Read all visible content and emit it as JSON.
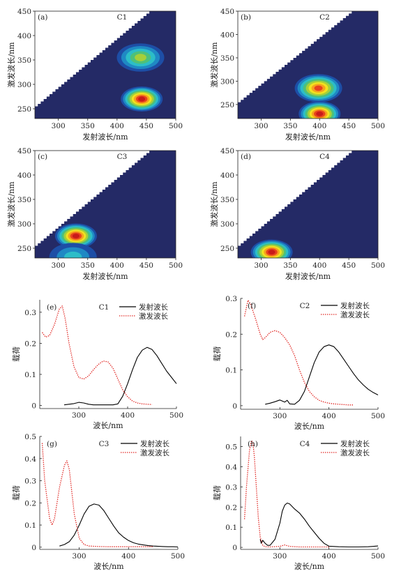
{
  "chart_data": [
    {
      "type": "heatmap",
      "panel": "(a)",
      "title": "C1",
      "xlabel": "发射波长/nm",
      "ylabel": "激发波长/nm",
      "xlim": [
        260,
        500
      ],
      "ylim": [
        230,
        450
      ],
      "xticks": [
        300,
        350,
        400,
        450,
        500
      ],
      "yticks": [
        250,
        300,
        350,
        400,
        450
      ],
      "peaks": [
        {
          "em": 442,
          "ex": 270,
          "intensity": 1.0
        },
        {
          "em": 440,
          "ex": 355,
          "intensity": 0.5
        }
      ]
    },
    {
      "type": "heatmap",
      "panel": "(b)",
      "title": "C2",
      "xlabel": "发射波长/nm",
      "ylabel": "激发波长/nm",
      "xlim": [
        260,
        500
      ],
      "ylim": [
        220,
        450
      ],
      "xticks": [
        300,
        350,
        400,
        450,
        500
      ],
      "yticks": [
        250,
        300,
        350,
        400,
        450
      ],
      "peaks": [
        {
          "em": 400,
          "ex": 230,
          "intensity": 1.0
        },
        {
          "em": 398,
          "ex": 285,
          "intensity": 0.85
        }
      ]
    },
    {
      "type": "heatmap",
      "panel": "(c)",
      "title": "C3",
      "xlabel": "发射波长/nm",
      "ylabel": "激发波长/nm",
      "xlim": [
        260,
        500
      ],
      "ylim": [
        230,
        450
      ],
      "xticks": [
        300,
        350,
        400,
        450,
        500
      ],
      "yticks": [
        250,
        300,
        350,
        400,
        450
      ],
      "peaks": [
        {
          "em": 330,
          "ex": 275,
          "intensity": 1.0
        },
        {
          "em": 325,
          "ex": 232,
          "intensity": 0.35
        }
      ]
    },
    {
      "type": "heatmap",
      "panel": "(d)",
      "title": "C4",
      "xlabel": "发射波长/nm",
      "ylabel": "激发波长/nm",
      "xlim": [
        260,
        500
      ],
      "ylim": [
        230,
        450
      ],
      "xticks": [
        300,
        350,
        400,
        450,
        500
      ],
      "yticks": [
        250,
        300,
        350,
        400,
        450
      ],
      "peaks": [
        {
          "em": 318,
          "ex": 242,
          "intensity": 1.0
        }
      ]
    },
    {
      "type": "line",
      "panel": "(e)",
      "title": "C1",
      "xlabel": "波长/nm",
      "ylabel": "载荷",
      "xlim": [
        220,
        500
      ],
      "ylim": [
        -0.01,
        0.34
      ],
      "xticks": [
        300,
        400,
        500
      ],
      "yticks": [
        0,
        0.1,
        0.2,
        0.3
      ],
      "series": [
        {
          "name": "发射波长",
          "color": "#000000",
          "dash": "solid",
          "x": [
            270,
            280,
            290,
            300,
            310,
            320,
            330,
            340,
            350,
            360,
            370,
            380,
            390,
            400,
            410,
            420,
            430,
            440,
            450,
            460,
            470,
            480,
            490,
            500
          ],
          "y": [
            0.002,
            0.004,
            0.006,
            0.01,
            0.008,
            0.004,
            0.002,
            0.002,
            0.002,
            0.002,
            0.002,
            0.005,
            0.03,
            0.07,
            0.115,
            0.155,
            0.178,
            0.187,
            0.18,
            0.16,
            0.135,
            0.11,
            0.09,
            0.07
          ]
        },
        {
          "name": "激发波长",
          "color": "#e0201c",
          "dash": "dotted",
          "x": [
            225,
            232,
            240,
            250,
            260,
            266,
            272,
            280,
            290,
            300,
            310,
            320,
            330,
            340,
            350,
            360,
            370,
            380,
            390,
            400,
            410,
            420,
            430,
            440,
            450
          ],
          "y": [
            0.235,
            0.22,
            0.225,
            0.26,
            0.31,
            0.32,
            0.28,
            0.2,
            0.125,
            0.09,
            0.085,
            0.095,
            0.115,
            0.132,
            0.143,
            0.14,
            0.12,
            0.085,
            0.05,
            0.028,
            0.014,
            0.008,
            0.005,
            0.004,
            0.003
          ]
        }
      ]
    },
    {
      "type": "line",
      "panel": "(f)",
      "title": "C2",
      "xlabel": "波长/nm",
      "ylabel": "载荷",
      "xlim": [
        220,
        500
      ],
      "ylim": [
        -0.01,
        0.3
      ],
      "xticks": [
        300,
        400,
        500
      ],
      "yticks": [
        0,
        0.1,
        0.2,
        0.3
      ],
      "series": [
        {
          "name": "发射波长",
          "color": "#000000",
          "dash": "solid",
          "x": [
            270,
            280,
            290,
            300,
            310,
            315,
            320,
            330,
            340,
            350,
            360,
            370,
            380,
            390,
            400,
            410,
            420,
            430,
            440,
            450,
            460,
            470,
            480,
            490,
            500
          ],
          "y": [
            0.004,
            0.007,
            0.011,
            0.016,
            0.01,
            0.015,
            0.005,
            0.004,
            0.015,
            0.04,
            0.08,
            0.12,
            0.15,
            0.165,
            0.17,
            0.165,
            0.15,
            0.13,
            0.11,
            0.09,
            0.072,
            0.058,
            0.046,
            0.037,
            0.03
          ]
        },
        {
          "name": "激发波长",
          "color": "#e0201c",
          "dash": "dotted",
          "x": [
            228,
            235,
            240,
            250,
            260,
            265,
            270,
            280,
            290,
            300,
            310,
            320,
            330,
            340,
            350,
            360,
            370,
            380,
            390,
            400,
            410,
            420,
            430,
            440,
            450
          ],
          "y": [
            0.25,
            0.295,
            0.285,
            0.245,
            0.2,
            0.185,
            0.19,
            0.205,
            0.21,
            0.205,
            0.19,
            0.17,
            0.14,
            0.1,
            0.065,
            0.04,
            0.025,
            0.015,
            0.01,
            0.007,
            0.005,
            0.004,
            0.003,
            0.002,
            0.002
          ]
        }
      ]
    },
    {
      "type": "line",
      "panel": "(g)",
      "title": "C3",
      "xlabel": "波长/nm",
      "ylabel": "载荷",
      "xlim": [
        220,
        500
      ],
      "ylim": [
        -0.01,
        0.5
      ],
      "xticks": [
        300,
        400,
        500
      ],
      "yticks": [
        0,
        0.1,
        0.2,
        0.3,
        0.4,
        0.5
      ],
      "series": [
        {
          "name": "发射波长",
          "color": "#000000",
          "dash": "solid",
          "x": [
            260,
            270,
            280,
            290,
            300,
            310,
            320,
            330,
            340,
            350,
            360,
            370,
            380,
            390,
            400,
            410,
            420,
            430,
            440,
            450,
            460,
            470,
            480,
            490,
            500
          ],
          "y": [
            0.005,
            0.012,
            0.025,
            0.055,
            0.1,
            0.15,
            0.185,
            0.195,
            0.19,
            0.165,
            0.13,
            0.095,
            0.065,
            0.045,
            0.03,
            0.02,
            0.014,
            0.01,
            0.007,
            0.005,
            0.004,
            0.003,
            0.002,
            0.002,
            0.001
          ]
        },
        {
          "name": "激发波长",
          "color": "#e0201c",
          "dash": "dotted",
          "x": [
            225,
            230,
            240,
            245,
            250,
            260,
            270,
            275,
            280,
            290,
            300,
            310,
            320,
            340,
            360,
            380,
            400,
            420,
            440,
            450
          ],
          "y": [
            0.47,
            0.3,
            0.13,
            0.1,
            0.13,
            0.27,
            0.37,
            0.39,
            0.35,
            0.15,
            0.04,
            0.012,
            0.005,
            0.003,
            0.002,
            0.002,
            0.002,
            0.002,
            0.002,
            0.002
          ]
        }
      ]
    },
    {
      "type": "line",
      "panel": "(h)",
      "title": "C4",
      "xlabel": "波长/nm",
      "ylabel": "载荷",
      "xlim": [
        220,
        500
      ],
      "ylim": [
        -0.01,
        0.55
      ],
      "xticks": [
        300,
        400,
        500
      ],
      "yticks": [
        0,
        0.1,
        0.2,
        0.3,
        0.4,
        0.5
      ],
      "series": [
        {
          "name": "发射波长",
          "color": "#000000",
          "dash": "solid",
          "x": [
            260,
            262,
            265,
            270,
            275,
            280,
            290,
            300,
            305,
            310,
            315,
            320,
            330,
            340,
            350,
            360,
            370,
            380,
            390,
            400,
            420,
            440,
            460,
            480,
            490,
            500
          ],
          "y": [
            0.04,
            0.02,
            0.035,
            0.02,
            0.01,
            0.01,
            0.04,
            0.12,
            0.18,
            0.21,
            0.22,
            0.215,
            0.19,
            0.17,
            0.14,
            0.105,
            0.075,
            0.045,
            0.02,
            0.006,
            0.003,
            0.002,
            0.002,
            0.003,
            0.005,
            0.007
          ]
        },
        {
          "name": "激发波长",
          "color": "#e0201c",
          "dash": "dotted",
          "x": [
            228,
            232,
            238,
            242,
            245,
            248,
            252,
            256,
            260,
            265,
            270,
            280,
            300,
            310,
            320,
            340,
            360,
            380,
            400
          ],
          "y": [
            0.14,
            0.3,
            0.48,
            0.53,
            0.52,
            0.45,
            0.3,
            0.15,
            0.05,
            0.01,
            0.003,
            0.002,
            0.005,
            0.012,
            0.005,
            0.002,
            0.002,
            0.002,
            0.002
          ]
        }
      ]
    }
  ]
}
